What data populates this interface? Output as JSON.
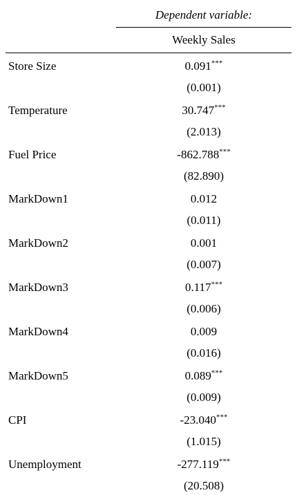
{
  "header": {
    "dependent_variable_label": "Dependent variable:",
    "dependent_variable_name": "Weekly Sales"
  },
  "rows": [
    {
      "name": "Store Size",
      "coef": "0.091",
      "stars": "***",
      "se": "(0.001)"
    },
    {
      "name": "Temperature",
      "coef": "30.747",
      "stars": "***",
      "se": "(2.013)"
    },
    {
      "name": "Fuel Price",
      "coef": "-862.788",
      "stars": "***",
      "se": "(82.890)"
    },
    {
      "name": "MarkDown1",
      "coef": "0.012",
      "stars": "",
      "se": "(0.011)"
    },
    {
      "name": "MarkDown2",
      "coef": "0.001",
      "stars": "",
      "se": "(0.007)"
    },
    {
      "name": "MarkDown3",
      "coef": "0.117",
      "stars": "***",
      "se": "(0.006)"
    },
    {
      "name": "MarkDown4",
      "coef": "0.009",
      "stars": "",
      "se": "(0.016)"
    },
    {
      "name": "MarkDown5",
      "coef": "0.089",
      "stars": "***",
      "se": "(0.009)"
    },
    {
      "name": "CPI",
      "coef": "-23.040",
      "stars": "***",
      "se": "(1.015)"
    },
    {
      "name": "Unemployment",
      "coef": "-277.119",
      "stars": "***",
      "se": "(20.508)"
    }
  ]
}
